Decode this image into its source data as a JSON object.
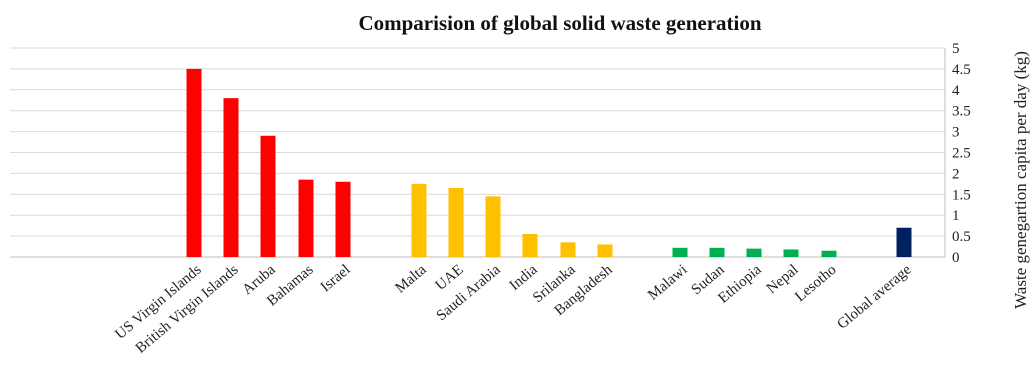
{
  "chart_data": {
    "type": "bar",
    "title": "Comparision of global solid waste generation",
    "xlabel": "",
    "ylabel": "Waste genegartion capita per day (kg)",
    "y_axis_position": "right",
    "ylim": [
      0,
      5
    ],
    "y_ticks": [
      "5",
      "4.5",
      "4",
      "3.5",
      "3",
      "2.5",
      "2",
      "1.5",
      "1",
      "0.5",
      "0"
    ],
    "grid": true,
    "legend": "none",
    "categories": [
      "US Virgin Islands",
      "British Virgin Islands",
      "Aruba",
      "Bahamas",
      "Israel",
      "Malta",
      "UAE",
      "Saudi Arabia",
      "India",
      "Srilanka",
      "Bangladesh",
      "Malawi",
      "Sudan",
      "Ethiopia",
      "Nepal",
      "Lesotho",
      "Global average"
    ],
    "values": [
      4.5,
      3.8,
      2.9,
      1.85,
      1.8,
      1.75,
      1.65,
      1.45,
      0.55,
      0.35,
      0.3,
      0.22,
      0.22,
      0.2,
      0.18,
      0.15,
      0.7
    ],
    "colors": [
      "#ff0000",
      "#ff0000",
      "#ff0000",
      "#ff0000",
      "#ff0000",
      "#ffc000",
      "#ffc000",
      "#ffc000",
      "#ffc000",
      "#ffc000",
      "#ffc000",
      "#00b050",
      "#00b050",
      "#00b050",
      "#00b050",
      "#00b050",
      "#002060"
    ]
  }
}
